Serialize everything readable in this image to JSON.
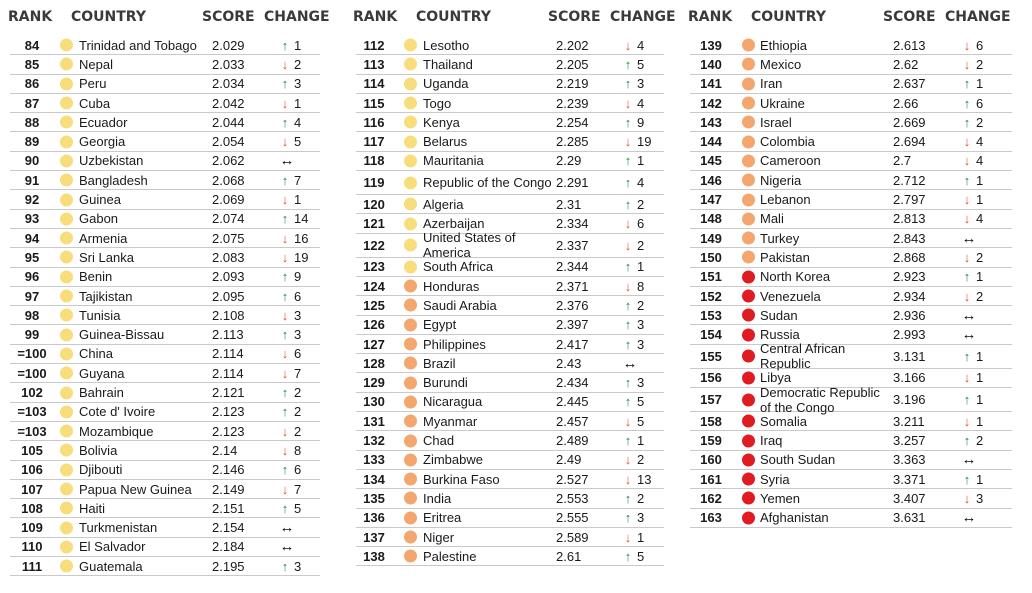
{
  "headers": {
    "rank": "RANK",
    "country": "COUNTRY",
    "score": "SCORE",
    "change": "CHANGE"
  },
  "colors": {
    "very_high": "#f7dd7c",
    "medium": "#f3a66e",
    "low": "#e11b22",
    "up_arrow": "#1c8a4a",
    "down_arrow": "#e0533d"
  },
  "arrow_glyphs": {
    "up": "↑",
    "down": "↓",
    "same": "↔"
  },
  "columns": [
    {
      "rows": [
        {
          "rank": "84",
          "country": "Trinidad and Tobago",
          "score": "2.029",
          "dir": "up",
          "change": "1",
          "color": "very_high"
        },
        {
          "rank": "85",
          "country": "Nepal",
          "score": "2.033",
          "dir": "down",
          "change": "2",
          "color": "very_high"
        },
        {
          "rank": "86",
          "country": "Peru",
          "score": "2.034",
          "dir": "up",
          "change": "3",
          "color": "very_high"
        },
        {
          "rank": "87",
          "country": "Cuba",
          "score": "2.042",
          "dir": "down",
          "change": "1",
          "color": "very_high"
        },
        {
          "rank": "88",
          "country": "Ecuador",
          "score": "2.044",
          "dir": "up",
          "change": "4",
          "color": "very_high"
        },
        {
          "rank": "89",
          "country": "Georgia",
          "score": "2.054",
          "dir": "down",
          "change": "5",
          "color": "very_high"
        },
        {
          "rank": "90",
          "country": "Uzbekistan",
          "score": "2.062",
          "dir": "same",
          "change": "",
          "color": "very_high"
        },
        {
          "rank": "91",
          "country": "Bangladesh",
          "score": "2.068",
          "dir": "up",
          "change": "7",
          "color": "very_high"
        },
        {
          "rank": "92",
          "country": "Guinea",
          "score": "2.069",
          "dir": "down",
          "change": "1",
          "color": "very_high"
        },
        {
          "rank": "93",
          "country": "Gabon",
          "score": "2.074",
          "dir": "up",
          "change": "14",
          "color": "very_high"
        },
        {
          "rank": "94",
          "country": "Armenia",
          "score": "2.075",
          "dir": "down",
          "change": "16",
          "color": "very_high"
        },
        {
          "rank": "95",
          "country": "Sri Lanka",
          "score": "2.083",
          "dir": "down",
          "change": "19",
          "color": "very_high"
        },
        {
          "rank": "96",
          "country": "Benin",
          "score": "2.093",
          "dir": "up",
          "change": "9",
          "color": "very_high"
        },
        {
          "rank": "97",
          "country": "Tajikistan",
          "score": "2.095",
          "dir": "up",
          "change": "6",
          "color": "very_high"
        },
        {
          "rank": "98",
          "country": "Tunisia",
          "score": "2.108",
          "dir": "down",
          "change": "3",
          "color": "very_high"
        },
        {
          "rank": "99",
          "country": "Guinea-Bissau",
          "score": "2.113",
          "dir": "up",
          "change": "3",
          "color": "very_high"
        },
        {
          "rank": "=100",
          "country": "China",
          "score": "2.114",
          "dir": "down",
          "change": "6",
          "color": "very_high"
        },
        {
          "rank": "=100",
          "country": "Guyana",
          "score": "2.114",
          "dir": "down",
          "change": "7",
          "color": "very_high"
        },
        {
          "rank": "102",
          "country": "Bahrain",
          "score": "2.121",
          "dir": "up",
          "change": "2",
          "color": "very_high"
        },
        {
          "rank": "=103",
          "country": "Cote d' Ivoire",
          "score": "2.123",
          "dir": "up",
          "change": "2",
          "color": "very_high"
        },
        {
          "rank": "=103",
          "country": "Mozambique",
          "score": "2.123",
          "dir": "down",
          "change": "2",
          "color": "very_high"
        },
        {
          "rank": "105",
          "country": "Bolivia",
          "score": "2.14",
          "dir": "down",
          "change": "8",
          "color": "very_high"
        },
        {
          "rank": "106",
          "country": "Djibouti",
          "score": "2.146",
          "dir": "up",
          "change": "6",
          "color": "very_high"
        },
        {
          "rank": "107",
          "country": "Papua New Guinea",
          "score": "2.149",
          "dir": "down",
          "change": "7",
          "color": "very_high"
        },
        {
          "rank": "108",
          "country": "Haiti",
          "score": "2.151",
          "dir": "up",
          "change": "5",
          "color": "very_high"
        },
        {
          "rank": "109",
          "country": "Turkmenistan",
          "score": "2.154",
          "dir": "same",
          "change": "",
          "color": "very_high"
        },
        {
          "rank": "110",
          "country": "El Salvador",
          "score": "2.184",
          "dir": "same",
          "change": "",
          "color": "very_high"
        },
        {
          "rank": "111",
          "country": "Guatemala",
          "score": "2.195",
          "dir": "up",
          "change": "3",
          "color": "very_high"
        }
      ]
    },
    {
      "rows": [
        {
          "rank": "112",
          "country": "Lesotho",
          "score": "2.202",
          "dir": "down",
          "change": "4",
          "color": "very_high"
        },
        {
          "rank": "113",
          "country": "Thailand",
          "score": "2.205",
          "dir": "up",
          "change": "5",
          "color": "very_high"
        },
        {
          "rank": "114",
          "country": "Uganda",
          "score": "2.219",
          "dir": "up",
          "change": "3",
          "color": "very_high"
        },
        {
          "rank": "115",
          "country": "Togo",
          "score": "2.239",
          "dir": "down",
          "change": "4",
          "color": "very_high"
        },
        {
          "rank": "116",
          "country": "Kenya",
          "score": "2.254",
          "dir": "up",
          "change": "9",
          "color": "very_high"
        },
        {
          "rank": "117",
          "country": "Belarus",
          "score": "2.285",
          "dir": "down",
          "change": "19",
          "color": "very_high"
        },
        {
          "rank": "118",
          "country": "Mauritania",
          "score": "2.29",
          "dir": "up",
          "change": "1",
          "color": "very_high"
        },
        {
          "rank": "119",
          "country": "Republic of the Congo",
          "score": "2.291",
          "dir": "up",
          "change": "4",
          "color": "very_high"
        },
        {
          "rank": "120",
          "country": "Algeria",
          "score": "2.31",
          "dir": "up",
          "change": "2",
          "color": "very_high"
        },
        {
          "rank": "121",
          "country": "Azerbaijan",
          "score": "2.334",
          "dir": "down",
          "change": "6",
          "color": "very_high"
        },
        {
          "rank": "122",
          "country": "United States of America",
          "score": "2.337",
          "dir": "down",
          "change": "2",
          "color": "very_high"
        },
        {
          "rank": "123",
          "country": "South Africa",
          "score": "2.344",
          "dir": "up",
          "change": "1",
          "color": "very_high"
        },
        {
          "rank": "124",
          "country": "Honduras",
          "score": "2.371",
          "dir": "down",
          "change": "8",
          "color": "medium"
        },
        {
          "rank": "125",
          "country": "Saudi Arabia",
          "score": "2.376",
          "dir": "up",
          "change": "2",
          "color": "medium"
        },
        {
          "rank": "126",
          "country": "Egypt",
          "score": "2.397",
          "dir": "up",
          "change": "3",
          "color": "medium"
        },
        {
          "rank": "127",
          "country": "Philippines",
          "score": "2.417",
          "dir": "up",
          "change": "3",
          "color": "medium"
        },
        {
          "rank": "128",
          "country": "Brazil",
          "score": "2.43",
          "dir": "same",
          "change": "",
          "color": "medium"
        },
        {
          "rank": "129",
          "country": "Burundi",
          "score": "2.434",
          "dir": "up",
          "change": "3",
          "color": "medium"
        },
        {
          "rank": "130",
          "country": "Nicaragua",
          "score": "2.445",
          "dir": "up",
          "change": "5",
          "color": "medium"
        },
        {
          "rank": "131",
          "country": "Myanmar",
          "score": "2.457",
          "dir": "down",
          "change": "5",
          "color": "medium"
        },
        {
          "rank": "132",
          "country": "Chad",
          "score": "2.489",
          "dir": "up",
          "change": "1",
          "color": "medium"
        },
        {
          "rank": "133",
          "country": "Zimbabwe",
          "score": "2.49",
          "dir": "down",
          "change": "2",
          "color": "medium"
        },
        {
          "rank": "134",
          "country": "Burkina Faso",
          "score": "2.527",
          "dir": "down",
          "change": "13",
          "color": "medium"
        },
        {
          "rank": "135",
          "country": "India",
          "score": "2.553",
          "dir": "up",
          "change": "2",
          "color": "medium"
        },
        {
          "rank": "136",
          "country": "Eritrea",
          "score": "2.555",
          "dir": "up",
          "change": "3",
          "color": "medium"
        },
        {
          "rank": "137",
          "country": "Niger",
          "score": "2.589",
          "dir": "down",
          "change": "1",
          "color": "medium"
        },
        {
          "rank": "138",
          "country": "Palestine",
          "score": "2.61",
          "dir": "up",
          "change": "5",
          "color": "medium"
        }
      ]
    },
    {
      "rows": [
        {
          "rank": "139",
          "country": "Ethiopia",
          "score": "2.613",
          "dir": "down",
          "change": "6",
          "color": "medium"
        },
        {
          "rank": "140",
          "country": "Mexico",
          "score": "2.62",
          "dir": "down",
          "change": "2",
          "color": "medium"
        },
        {
          "rank": "141",
          "country": "Iran",
          "score": "2.637",
          "dir": "up",
          "change": "1",
          "color": "medium"
        },
        {
          "rank": "142",
          "country": "Ukraine",
          "score": "2.66",
          "dir": "up",
          "change": "6",
          "color": "medium"
        },
        {
          "rank": "143",
          "country": "Israel",
          "score": "2.669",
          "dir": "up",
          "change": "2",
          "color": "medium"
        },
        {
          "rank": "144",
          "country": "Colombia",
          "score": "2.694",
          "dir": "down",
          "change": "4",
          "color": "medium"
        },
        {
          "rank": "145",
          "country": "Cameroon",
          "score": "2.7",
          "dir": "down",
          "change": "4",
          "color": "medium"
        },
        {
          "rank": "146",
          "country": "Nigeria",
          "score": "2.712",
          "dir": "up",
          "change": "1",
          "color": "medium"
        },
        {
          "rank": "147",
          "country": "Lebanon",
          "score": "2.797",
          "dir": "down",
          "change": "1",
          "color": "medium"
        },
        {
          "rank": "148",
          "country": "Mali",
          "score": "2.813",
          "dir": "down",
          "change": "4",
          "color": "medium"
        },
        {
          "rank": "149",
          "country": "Turkey",
          "score": "2.843",
          "dir": "same",
          "change": "",
          "color": "medium"
        },
        {
          "rank": "150",
          "country": "Pakistan",
          "score": "2.868",
          "dir": "down",
          "change": "2",
          "color": "medium"
        },
        {
          "rank": "151",
          "country": "North Korea",
          "score": "2.923",
          "dir": "up",
          "change": "1",
          "color": "low"
        },
        {
          "rank": "152",
          "country": "Venezuela",
          "score": "2.934",
          "dir": "down",
          "change": "2",
          "color": "low"
        },
        {
          "rank": "153",
          "country": "Sudan",
          "score": "2.936",
          "dir": "same",
          "change": "",
          "color": "low"
        },
        {
          "rank": "154",
          "country": "Russia",
          "score": "2.993",
          "dir": "same",
          "change": "",
          "color": "low"
        },
        {
          "rank": "155",
          "country": "Central African Republic",
          "score": "3.131",
          "dir": "up",
          "change": "1",
          "color": "low"
        },
        {
          "rank": "156",
          "country": "Libya",
          "score": "3.166",
          "dir": "down",
          "change": "1",
          "color": "low"
        },
        {
          "rank": "157",
          "country": "Democratic Republic of the Congo",
          "score": "3.196",
          "dir": "up",
          "change": "1",
          "color": "low"
        },
        {
          "rank": "158",
          "country": "Somalia",
          "score": "3.211",
          "dir": "down",
          "change": "1",
          "color": "low"
        },
        {
          "rank": "159",
          "country": "Iraq",
          "score": "3.257",
          "dir": "up",
          "change": "2",
          "color": "low"
        },
        {
          "rank": "160",
          "country": "South Sudan",
          "score": "3.363",
          "dir": "same",
          "change": "",
          "color": "low"
        },
        {
          "rank": "161",
          "country": "Syria",
          "score": "3.371",
          "dir": "up",
          "change": "1",
          "color": "low"
        },
        {
          "rank": "162",
          "country": "Yemen",
          "score": "3.407",
          "dir": "down",
          "change": "3",
          "color": "low"
        },
        {
          "rank": "163",
          "country": "Afghanistan",
          "score": "3.631",
          "dir": "same",
          "change": "",
          "color": "low"
        }
      ]
    }
  ]
}
